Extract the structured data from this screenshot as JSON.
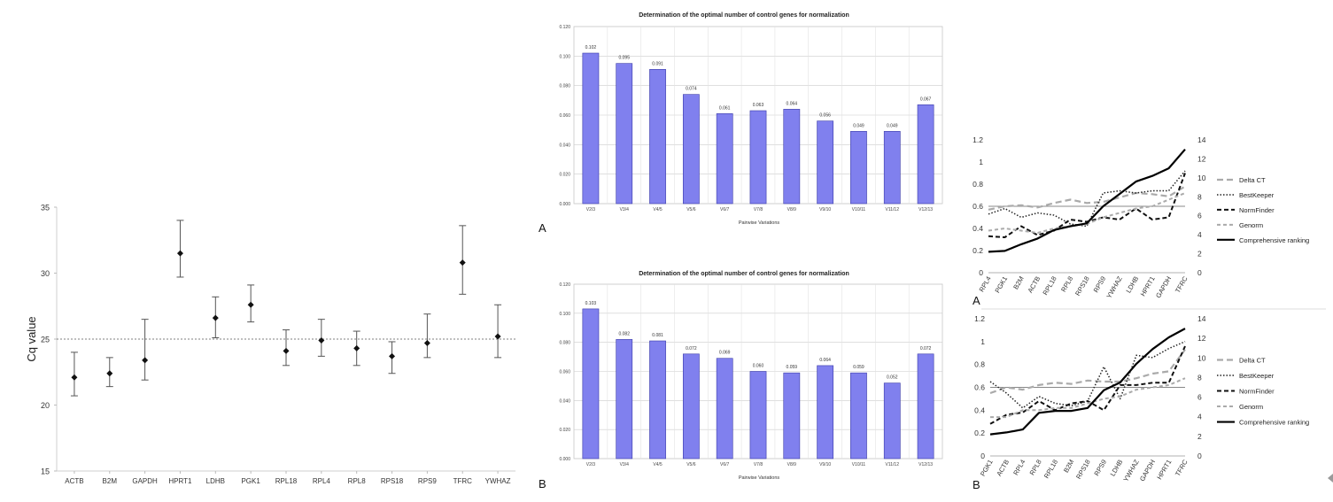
{
  "colors": {
    "bar_fill": "#8080ee",
    "bar_stroke": "#3a3aa8",
    "grid": "#cccccc",
    "dash_line": "#999999",
    "ink": "#111111",
    "whisker": "#555555",
    "series_delta": "#aaaaaa",
    "series_bestkeeper": "#222222",
    "series_normfinder": "#111111",
    "series_genorm": "#aaaaaa",
    "series_comprehensive": "#000000"
  },
  "labels": {
    "bar_A": "A",
    "bar_B": "B",
    "line_A": "A",
    "line_B": "B"
  },
  "chart_data": [
    {
      "type": "scatter",
      "subtype": "errorbar",
      "categories": [
        "ACTB",
        "B2M",
        "GAPDH",
        "HPRT1",
        "LDHB",
        "PGK1",
        "RPL18",
        "RPL4",
        "RPL8",
        "RPS18",
        "RPS9",
        "TFRC",
        "YWHAZ"
      ],
      "values": [
        22.1,
        22.4,
        23.4,
        31.5,
        26.6,
        27.6,
        24.1,
        24.9,
        24.3,
        23.7,
        24.7,
        30.8,
        25.2
      ],
      "error_low": [
        20.7,
        21.4,
        21.9,
        29.7,
        25.1,
        26.3,
        23.0,
        23.7,
        23.0,
        22.4,
        23.6,
        28.4,
        23.6
      ],
      "error_high": [
        24.0,
        23.6,
        26.5,
        34.0,
        28.2,
        29.1,
        25.7,
        26.5,
        25.6,
        24.8,
        26.9,
        33.6,
        27.6
      ],
      "ylabel": "Cq value",
      "ylim": [
        15,
        35
      ],
      "yticks": [
        "15",
        "20",
        "25",
        "30",
        "35"
      ],
      "reference_line": 25
    },
    {
      "type": "bar",
      "title": "Determination of the optimal number of control genes for normalization",
      "xlabel": "Pairwise Variations",
      "categories": [
        "V2/3",
        "V3/4",
        "V4/5",
        "V5/6",
        "V6/7",
        "V7/8",
        "V8/9",
        "V9/10",
        "V10/11",
        "V11/12",
        "V12/13"
      ],
      "values": [
        0.102,
        0.095,
        0.091,
        0.074,
        0.061,
        0.063,
        0.064,
        0.056,
        0.049,
        0.049,
        0.067
      ],
      "value_labels": [
        "0.102",
        "0.095",
        "0.091",
        "0.074",
        "0.061",
        "0.063",
        "0.064",
        "0.056",
        "0.049",
        "0.049",
        "0.067"
      ],
      "ylim": [
        0,
        0.12
      ],
      "yticks": [
        "0.000",
        "0.020",
        "0.040",
        "0.060",
        "0.080",
        "0.100",
        "0.120"
      ]
    },
    {
      "type": "bar",
      "title": "Determination of the optimal number of control genes for normalization",
      "xlabel": "Pairwise Variations",
      "categories": [
        "V2/3",
        "V3/4",
        "V4/5",
        "V5/6",
        "V6/7",
        "V7/8",
        "V8/9",
        "V9/10",
        "V10/11",
        "V11/12",
        "V12/13"
      ],
      "values": [
        0.103,
        0.082,
        0.081,
        0.072,
        0.069,
        0.06,
        0.059,
        0.064,
        0.059,
        0.052,
        0.072
      ],
      "value_labels": [
        "0.103",
        "0.082",
        "0.081",
        "0.072",
        "0.069",
        "0.060",
        "0.059",
        "0.064",
        "0.059",
        "0.052",
        "0.072"
      ],
      "ylim": [
        0,
        0.12
      ],
      "yticks": [
        "0.000",
        "0.020",
        "0.040",
        "0.060",
        "0.080",
        "0.100",
        "0.120"
      ]
    },
    {
      "type": "line",
      "categories": [
        "RPL4",
        "PGK1",
        "B2M",
        "ACTB",
        "RPL18",
        "RPL8",
        "RPS18",
        "RPS9",
        "YWHAZ",
        "LDHB",
        "HPRT1",
        "GAPDH",
        "TFRC"
      ],
      "ylim": [
        0,
        1.2
      ],
      "yticks": [
        "0",
        "0.2",
        "0.4",
        "0.6",
        "0.8",
        "1",
        "1.2"
      ],
      "y2lim": [
        0,
        14
      ],
      "y2ticks": [
        "0",
        "2",
        "4",
        "6",
        "8",
        "10",
        "12",
        "14"
      ],
      "reference_line": 0.6,
      "legend_position": "right",
      "series": [
        {
          "name": "Delta CT",
          "axis": "left",
          "style": "longdash-gray",
          "values": [
            0.57,
            0.6,
            0.61,
            0.59,
            0.63,
            0.66,
            0.63,
            0.64,
            0.68,
            0.72,
            0.71,
            0.69,
            0.78
          ]
        },
        {
          "name": "BestKeeper",
          "axis": "left",
          "style": "dotted",
          "values": [
            0.53,
            0.58,
            0.5,
            0.54,
            0.52,
            0.44,
            0.42,
            0.72,
            0.74,
            0.72,
            0.74,
            0.74,
            0.92
          ]
        },
        {
          "name": "NormFinder",
          "axis": "left",
          "style": "dashed-black",
          "values": [
            0.33,
            0.32,
            0.42,
            0.34,
            0.38,
            0.48,
            0.46,
            0.5,
            0.48,
            0.58,
            0.48,
            0.5,
            0.9
          ]
        },
        {
          "name": "Genorm",
          "axis": "left",
          "style": "dashed-gray",
          "values": [
            0.38,
            0.4,
            0.38,
            0.36,
            0.4,
            0.42,
            0.44,
            0.5,
            0.54,
            0.58,
            0.6,
            0.66,
            0.72
          ]
        },
        {
          "name": "Comprehensive ranking",
          "axis": "right",
          "style": "solid-thick",
          "values": [
            2.2,
            2.3,
            3.0,
            3.6,
            4.5,
            4.9,
            5.2,
            7.0,
            8.3,
            9.6,
            10.2,
            11.0,
            13.0
          ]
        }
      ]
    },
    {
      "type": "line",
      "categories": [
        "PGK1",
        "ACTB",
        "RPL4",
        "RPL8",
        "RPL18",
        "B2M",
        "RPS18",
        "RPS9",
        "LDHB",
        "YWHAZ",
        "GAPDH",
        "HPRT1",
        "TFRC"
      ],
      "ylim": [
        0,
        1.2
      ],
      "yticks": [
        "0",
        "0.2",
        "0.4",
        "0.6",
        "0.8",
        "1",
        "1.2"
      ],
      "y2lim": [
        0,
        14
      ],
      "y2ticks": [
        "0",
        "2",
        "4",
        "6",
        "8",
        "10",
        "12",
        "14"
      ],
      "reference_line": 0.6,
      "legend_position": "right",
      "series": [
        {
          "name": "Delta CT",
          "axis": "left",
          "style": "longdash-gray",
          "values": [
            0.55,
            0.6,
            0.58,
            0.62,
            0.64,
            0.63,
            0.66,
            0.65,
            0.65,
            0.68,
            0.72,
            0.74,
            0.93
          ]
        },
        {
          "name": "BestKeeper",
          "axis": "left",
          "style": "dotted",
          "values": [
            0.65,
            0.55,
            0.42,
            0.52,
            0.46,
            0.44,
            0.48,
            0.78,
            0.5,
            0.88,
            0.86,
            0.94,
            1.0
          ]
        },
        {
          "name": "NormFinder",
          "axis": "left",
          "style": "dashed-black",
          "values": [
            0.28,
            0.36,
            0.38,
            0.48,
            0.4,
            0.46,
            0.48,
            0.4,
            0.62,
            0.62,
            0.64,
            0.64,
            0.96
          ]
        },
        {
          "name": "Genorm",
          "axis": "left",
          "style": "dashed-gray",
          "values": [
            0.34,
            0.34,
            0.4,
            0.4,
            0.42,
            0.42,
            0.46,
            0.5,
            0.52,
            0.58,
            0.6,
            0.62,
            0.68
          ]
        },
        {
          "name": "Comprehensive ranking",
          "axis": "right",
          "style": "solid-thick",
          "values": [
            2.2,
            2.4,
            2.7,
            4.4,
            4.6,
            4.6,
            4.9,
            6.7,
            7.5,
            9.4,
            10.9,
            12.1,
            13.0
          ]
        }
      ]
    }
  ]
}
